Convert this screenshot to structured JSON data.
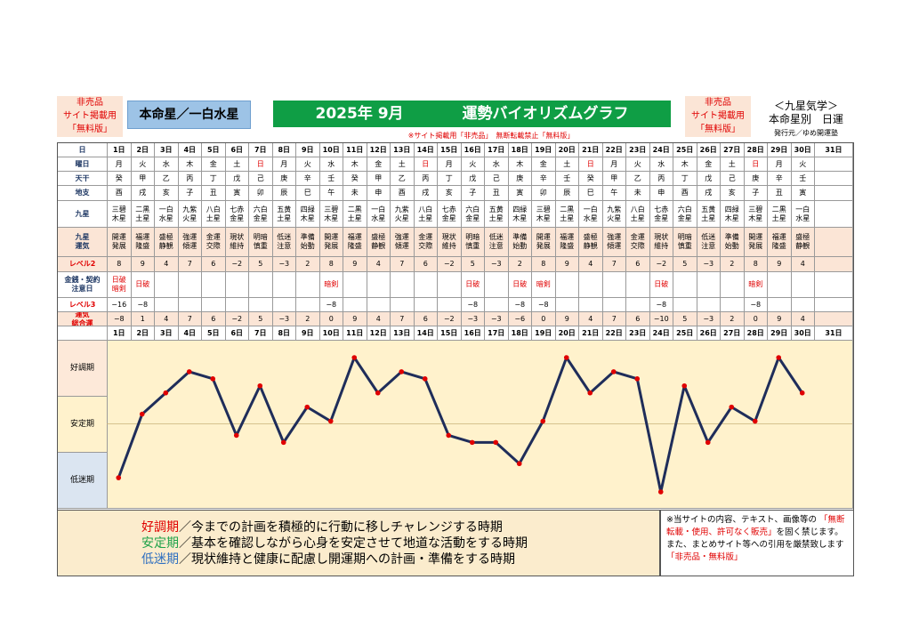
{
  "header": {
    "nonsale_left": [
      "非売品",
      "サイト掲載用",
      "「無料版」"
    ],
    "honmei": "本命星／一白水星",
    "title_date": "2025年 9月",
    "title_main": "運勢バイオリズムグラフ",
    "nonsale_right": [
      "非売品",
      "サイト掲載用",
      "「無料版」"
    ],
    "kyusei": [
      "＜九星気学＞",
      "本命星別　日運"
    ],
    "publisher": "発行元／ゆめ開運塾",
    "notice_top": "※サイト掲載用「非売品」　無断転載禁止「無料版」"
  },
  "row_labels": {
    "day": "日",
    "weekday": "曜日",
    "kan": "天干",
    "shi": "地支",
    "kyusei": "九星",
    "fortune": [
      "九星",
      "運気"
    ],
    "level2": "レベル2",
    "money": [
      "金銭・契約",
      "注意日"
    ],
    "level3": "レベル3",
    "total": [
      "運気",
      "総合運"
    ]
  },
  "days": [
    "1日",
    "2日",
    "3日",
    "4日",
    "5日",
    "6日",
    "7日",
    "8日",
    "9日",
    "10日",
    "11日",
    "12日",
    "13日",
    "14日",
    "15日",
    "16日",
    "17日",
    "18日",
    "19日",
    "20日",
    "21日",
    "22日",
    "23日",
    "24日",
    "25日",
    "26日",
    "27日",
    "28日",
    "29日",
    "30日",
    "31日"
  ],
  "weekdays": [
    "月",
    "火",
    "水",
    "木",
    "金",
    "土",
    "日",
    "月",
    "火",
    "水",
    "木",
    "金",
    "土",
    "日",
    "月",
    "火",
    "水",
    "木",
    "金",
    "土",
    "日",
    "月",
    "火",
    "水",
    "木",
    "金",
    "土",
    "日",
    "月",
    "火",
    ""
  ],
  "kan": [
    "癸",
    "甲",
    "乙",
    "丙",
    "丁",
    "戊",
    "己",
    "庚",
    "辛",
    "壬",
    "癸",
    "甲",
    "乙",
    "丙",
    "丁",
    "戊",
    "己",
    "庚",
    "辛",
    "壬",
    "癸",
    "甲",
    "乙",
    "丙",
    "丁",
    "戊",
    "己",
    "庚",
    "辛",
    "壬",
    ""
  ],
  "shi": [
    "酉",
    "戌",
    "亥",
    "子",
    "丑",
    "寅",
    "卯",
    "辰",
    "巳",
    "午",
    "未",
    "申",
    "酉",
    "戌",
    "亥",
    "子",
    "丑",
    "寅",
    "卯",
    "辰",
    "巳",
    "午",
    "未",
    "申",
    "酉",
    "戌",
    "亥",
    "子",
    "丑",
    "寅",
    ""
  ],
  "kyusei_stars": [
    [
      "三碧",
      "木星"
    ],
    [
      "二黒",
      "土星"
    ],
    [
      "一白",
      "水星"
    ],
    [
      "九紫",
      "火星"
    ],
    [
      "八白",
      "土星"
    ],
    [
      "七赤",
      "金星"
    ],
    [
      "六白",
      "金星"
    ],
    [
      "五黄",
      "土星"
    ],
    [
      "四緑",
      "木星"
    ],
    [
      "三碧",
      "木星"
    ],
    [
      "二黒",
      "土星"
    ],
    [
      "一白",
      "水星"
    ],
    [
      "九紫",
      "火星"
    ],
    [
      "八白",
      "土星"
    ],
    [
      "七赤",
      "金星"
    ],
    [
      "六白",
      "金星"
    ],
    [
      "五黄",
      "土星"
    ],
    [
      "四緑",
      "木星"
    ],
    [
      "三碧",
      "木星"
    ],
    [
      "二黒",
      "土星"
    ],
    [
      "一白",
      "水星"
    ],
    [
      "九紫",
      "火星"
    ],
    [
      "八白",
      "土星"
    ],
    [
      "七赤",
      "金星"
    ],
    [
      "六白",
      "金星"
    ],
    [
      "五黄",
      "土星"
    ],
    [
      "四緑",
      "木星"
    ],
    [
      "三碧",
      "木星"
    ],
    [
      "二黒",
      "土星"
    ],
    [
      "一白",
      "水星"
    ],
    [
      "",
      ""
    ]
  ],
  "fortunes": [
    [
      "開運",
      "発展"
    ],
    [
      "福運",
      "隆盛"
    ],
    [
      "盛極",
      "静観"
    ],
    [
      "強運",
      "傾運"
    ],
    [
      "金運",
      "交際"
    ],
    [
      "現状",
      "維持"
    ],
    [
      "明暗",
      "慎重"
    ],
    [
      "低迷",
      "注意"
    ],
    [
      "準備",
      "始動"
    ],
    [
      "開運",
      "発展"
    ],
    [
      "福運",
      "隆盛"
    ],
    [
      "盛極",
      "静観"
    ],
    [
      "強運",
      "傾運"
    ],
    [
      "金運",
      "交際"
    ],
    [
      "現状",
      "維持"
    ],
    [
      "明暗",
      "慎重"
    ],
    [
      "低迷",
      "注意"
    ],
    [
      "準備",
      "始動"
    ],
    [
      "開運",
      "発展"
    ],
    [
      "福運",
      "隆盛"
    ],
    [
      "盛極",
      "静観"
    ],
    [
      "強運",
      "傾運"
    ],
    [
      "金運",
      "交際"
    ],
    [
      "現状",
      "維持"
    ],
    [
      "明暗",
      "慎重"
    ],
    [
      "低迷",
      "注意"
    ],
    [
      "準備",
      "始動"
    ],
    [
      "開運",
      "発展"
    ],
    [
      "福運",
      "隆盛"
    ],
    [
      "盛極",
      "静観"
    ],
    [
      "",
      ""
    ]
  ],
  "level2": [
    "8",
    "9",
    "4",
    "7",
    "6",
    "−2",
    "5",
    "−3",
    "2",
    "8",
    "9",
    "4",
    "7",
    "6",
    "−2",
    "5",
    "−3",
    "2",
    "8",
    "9",
    "4",
    "7",
    "6",
    "−2",
    "5",
    "−3",
    "2",
    "8",
    "9",
    "4",
    ""
  ],
  "money_warn": [
    [
      "日破",
      "暗剣"
    ],
    [
      "日破",
      ""
    ],
    [
      "",
      ""
    ],
    [
      "",
      ""
    ],
    [
      "",
      ""
    ],
    [
      "",
      ""
    ],
    [
      "",
      ""
    ],
    [
      "",
      ""
    ],
    [
      "",
      ""
    ],
    [
      "暗剣",
      ""
    ],
    [
      "",
      ""
    ],
    [
      "",
      ""
    ],
    [
      "",
      ""
    ],
    [
      "",
      ""
    ],
    [
      "",
      ""
    ],
    [
      "日破",
      ""
    ],
    [
      "",
      ""
    ],
    [
      "日破",
      ""
    ],
    [
      "暗剣",
      ""
    ],
    [
      "",
      ""
    ],
    [
      "",
      ""
    ],
    [
      "",
      ""
    ],
    [
      "",
      ""
    ],
    [
      "日破",
      ""
    ],
    [
      "",
      ""
    ],
    [
      "",
      ""
    ],
    [
      "",
      ""
    ],
    [
      "暗剣",
      ""
    ],
    [
      "",
      ""
    ],
    [
      "",
      ""
    ],
    [
      "",
      ""
    ]
  ],
  "level3": [
    "−16",
    "−8",
    "",
    "",
    "",
    "",
    "",
    "",
    "",
    "−8",
    "",
    "",
    "",
    "",
    "",
    "−8",
    "",
    "−8",
    "−8",
    "",
    "",
    "",
    "",
    "−8",
    "",
    "",
    "",
    "−8",
    "",
    "",
    ""
  ],
  "total": [
    "−8",
    "1",
    "4",
    "7",
    "6",
    "−2",
    "5",
    "−3",
    "2",
    "0",
    "9",
    "4",
    "7",
    "6",
    "−2",
    "−3",
    "−3",
    "−6",
    "0",
    "9",
    "4",
    "7",
    "6",
    "−10",
    "5",
    "−3",
    "2",
    "0",
    "9",
    "4",
    ""
  ],
  "colors": {
    "good": "#fde9d9",
    "stable": "#fff2cc",
    "low": "#dbe5f1",
    "line": "#1f2d5a",
    "point": "#e00000",
    "pink": "#fbe5d6"
  },
  "chart_data": {
    "type": "line",
    "categories": [
      "1日",
      "2日",
      "3日",
      "4日",
      "5日",
      "6日",
      "7日",
      "8日",
      "9日",
      "10日",
      "11日",
      "12日",
      "13日",
      "14日",
      "15日",
      "16日",
      "17日",
      "18日",
      "19日",
      "20日",
      "21日",
      "22日",
      "23日",
      "24日",
      "25日",
      "26日",
      "27日",
      "28日",
      "29日",
      "30日",
      "31日"
    ],
    "values": [
      -8,
      1,
      4,
      7,
      6,
      -2,
      5,
      -3,
      2,
      0,
      9,
      4,
      7,
      6,
      -2,
      -3,
      -3,
      -6,
      0,
      9,
      4,
      7,
      6,
      -10,
      5,
      -3,
      2,
      0,
      9,
      4,
      null
    ],
    "ylim": [
      -10,
      9
    ],
    "bands": [
      "好調期",
      "安定期",
      "低迷期"
    ]
  },
  "legend": [
    {
      "term": "好調期",
      "text": "／今までの計画を積極的に行動に移しチャレンジする時期"
    },
    {
      "term": "安定期",
      "text": "／基本を確認しながら心身を安定させて地道な活動をする時期"
    },
    {
      "term": "低迷期",
      "text": "／現状維持と健康に配慮し開運期への計画・準備をする時期"
    }
  ],
  "notice": {
    "line1": "※当サイトの内容、テキスト、画像等の",
    "red": "「無断転載・使用、許可なく販売」",
    "line2": "を固く禁じます。また、まとめサイト等への引用を厳禁致します",
    "red2": "「非売品・無料版」"
  }
}
